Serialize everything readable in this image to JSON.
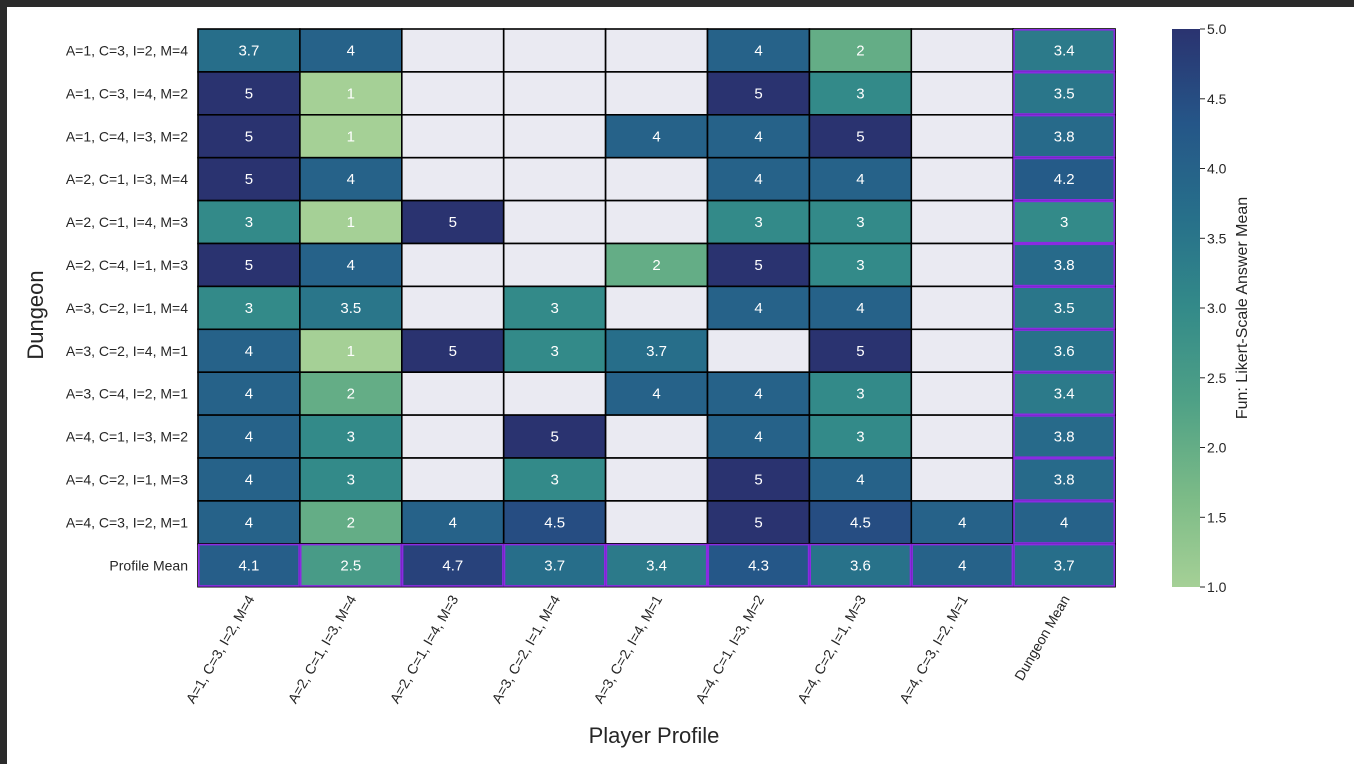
{
  "chart_data": {
    "type": "heatmap",
    "xlabel": "Player Profile",
    "ylabel": "Dungeon",
    "colorbar_label": "Fun: Likert-Scale Answer Mean",
    "colorbar_range": [
      1.0,
      5.0
    ],
    "colorbar_ticks": [
      "1.0",
      "1.5",
      "2.0",
      "2.5",
      "3.0",
      "3.5",
      "4.0",
      "4.5",
      "5.0"
    ],
    "colormap": "crest",
    "missing_color": "#eaeaf2",
    "summary_border_color": "#8a2be2",
    "columns": [
      "A=1, C=3, I=2, M=4",
      "A=2, C=1, I=3, M=4",
      "A=2, C=1, I=4, M=3",
      "A=3, C=2, I=1, M=4",
      "A=3, C=2, I=4, M=1",
      "A=4, C=1, I=3, M=2",
      "A=4, C=2, I=1, M=3",
      "A=4, C=3, I=2, M=1",
      "Dungeon Mean"
    ],
    "rows": [
      "A=1, C=3, I=2, M=4",
      "A=1, C=3, I=4, M=2",
      "A=1, C=4, I=3, M=2",
      "A=2, C=1, I=3, M=4",
      "A=2, C=1, I=4, M=3",
      "A=2, C=4, I=1, M=3",
      "A=3, C=2, I=1, M=4",
      "A=3, C=2, I=4, M=1",
      "A=3, C=4, I=2, M=1",
      "A=4, C=1, I=3, M=2",
      "A=4, C=2, I=1, M=3",
      "A=4, C=3, I=2, M=1",
      "Profile Mean"
    ],
    "values": [
      [
        3.7,
        4,
        null,
        null,
        null,
        4,
        2,
        null,
        3.4
      ],
      [
        5,
        1,
        null,
        null,
        null,
        5,
        3,
        null,
        3.5
      ],
      [
        5,
        1,
        null,
        null,
        4,
        4,
        5,
        null,
        3.8
      ],
      [
        5,
        4,
        null,
        null,
        null,
        4,
        4,
        null,
        4.2
      ],
      [
        3,
        1,
        5,
        null,
        null,
        3,
        3,
        null,
        3
      ],
      [
        5,
        4,
        null,
        null,
        2,
        5,
        3,
        null,
        3.8
      ],
      [
        3,
        3.5,
        null,
        3,
        null,
        4,
        4,
        null,
        3.5
      ],
      [
        4,
        1,
        5,
        3,
        3.7,
        null,
        5,
        null,
        3.6
      ],
      [
        4,
        2,
        null,
        null,
        4,
        4,
        3,
        null,
        3.4
      ],
      [
        4,
        3,
        null,
        5,
        null,
        4,
        3,
        null,
        3.8
      ],
      [
        4,
        3,
        null,
        3,
        null,
        5,
        4,
        null,
        3.8
      ],
      [
        4,
        2,
        4,
        4.5,
        null,
        5,
        4.5,
        4,
        4
      ],
      [
        4.1,
        2.5,
        4.7,
        3.7,
        3.4,
        4.3,
        3.6,
        4,
        3.7
      ]
    ]
  }
}
